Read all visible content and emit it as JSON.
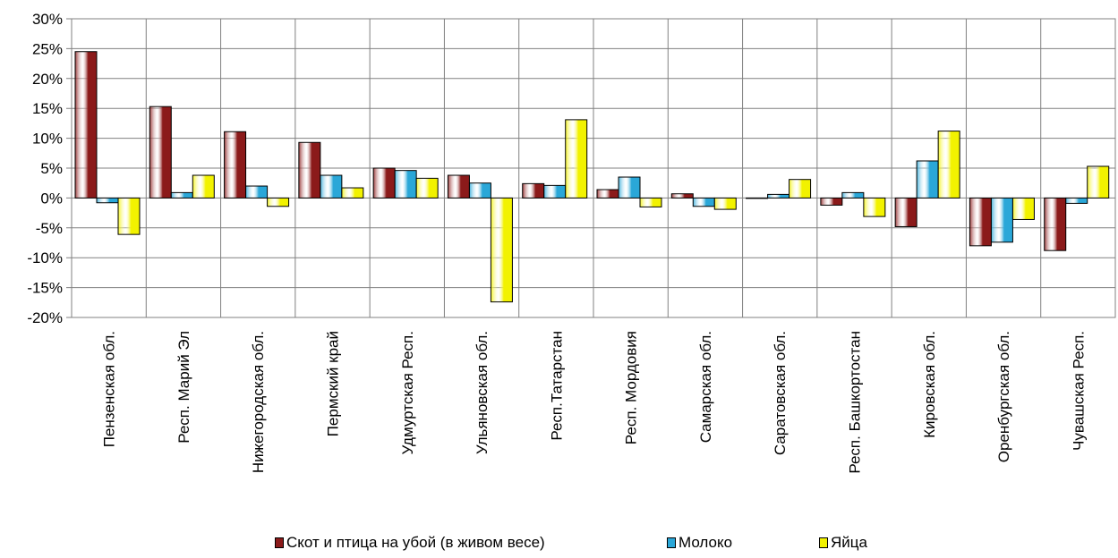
{
  "colors": {
    "cattle": "#8b1a1a",
    "milk": "#2aa7d8",
    "eggs": "#f2f200"
  },
  "chart_data": {
    "type": "bar",
    "categories": [
      "Пензенская обл.",
      "Респ. Марий Эл",
      "Нижегородская обл.",
      "Пермский край",
      "Удмуртская Респ.",
      "Ульяновская обл.",
      "Респ.Татарстан",
      "Респ. Мордовия",
      "Самарская обл.",
      "Саратовская обл.",
      "Респ. Башкортостан",
      "Кировская обл.",
      "Оренбургская обл.",
      "Чувашская Респ."
    ],
    "series": [
      {
        "name": "Скот и птица на убой (в живом весе)",
        "values": [
          24.5,
          15.3,
          11.1,
          9.3,
          5.0,
          3.8,
          2.4,
          1.4,
          0.7,
          0.0,
          -1.2,
          -4.8,
          -8.0,
          -8.8
        ]
      },
      {
        "name": "Молоко",
        "values": [
          -0.8,
          0.9,
          2.0,
          3.8,
          4.6,
          2.5,
          2.1,
          3.5,
          -1.4,
          0.6,
          0.9,
          6.2,
          -7.4,
          -0.9
        ]
      },
      {
        "name": "Яйца",
        "values": [
          -6.1,
          3.8,
          -1.4,
          1.7,
          3.3,
          -17.4,
          13.1,
          -1.5,
          -1.9,
          3.1,
          -3.1,
          11.2,
          -3.6,
          5.3
        ]
      }
    ],
    "yticks": [
      "30%",
      "25%",
      "20%",
      "15%",
      "10%",
      "5%",
      "0%",
      "-5%",
      "-10%",
      "-15%",
      "-20%"
    ],
    "ylim": [
      -20,
      30
    ],
    "grid": true,
    "legend": "bottom"
  }
}
